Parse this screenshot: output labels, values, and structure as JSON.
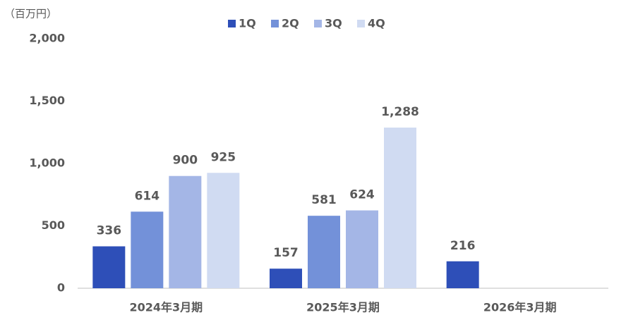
{
  "chart_data": {
    "type": "bar",
    "y_axis_label": "（百万円）",
    "categories": [
      "2024年3月期",
      "2025年3月期",
      "2026年3月期"
    ],
    "series": [
      {
        "name": "1Q",
        "color": "#2e4fb8",
        "values": [
          336,
          157,
          216
        ]
      },
      {
        "name": "2Q",
        "color": "#7391d9",
        "values": [
          614,
          581,
          null
        ]
      },
      {
        "name": "3Q",
        "color": "#a4b6e6",
        "values": [
          900,
          624,
          null
        ]
      },
      {
        "name": "4Q",
        "color": "#d0dbf2",
        "values": [
          925,
          1288,
          null
        ],
        "value_labels": [
          "925",
          "1,288",
          null
        ]
      }
    ],
    "ylim": [
      0,
      2000
    ],
    "yticks": [
      0,
      500,
      {
        "value": 1000,
        "label": "1,000"
      },
      {
        "value": 1500,
        "label": "1,500"
      },
      {
        "value": 2000,
        "label": "2,000"
      }
    ],
    "grid": false,
    "legend": "top"
  }
}
